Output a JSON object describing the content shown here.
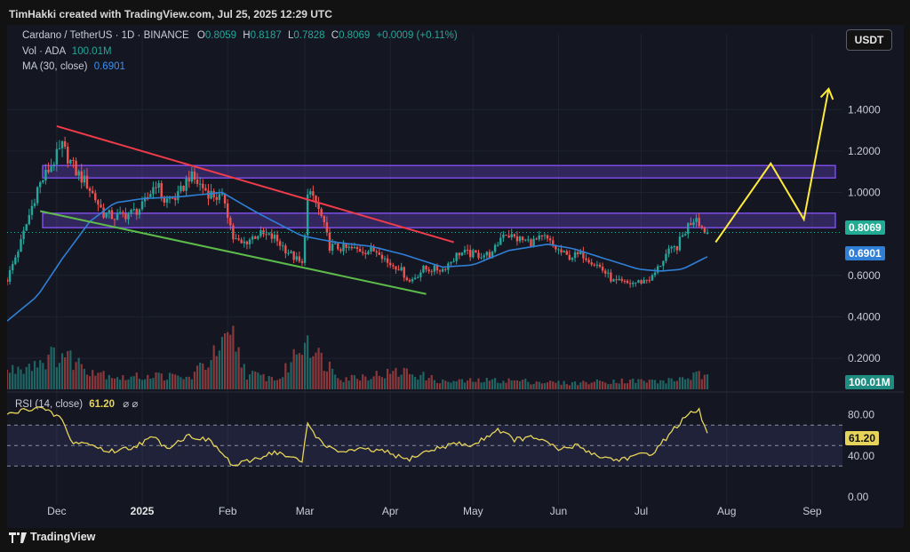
{
  "header": {
    "credit": "TimHakki created with TradingView.com, Jul 25, 2025 12:29 UTC"
  },
  "legend": {
    "symbol": "Cardano / TetherUS · 1D · BINANCE",
    "o_label": "O",
    "o": "0.8059",
    "h_label": "H",
    "h": "0.8187",
    "l_label": "L",
    "l": "0.7828",
    "c_label": "C",
    "c": "0.8069",
    "change": "+0.0009 (+0.11%)",
    "vol_label": "Vol · ADA",
    "vol": "100.01M",
    "ma_label": "MA (30, close)",
    "ma": "0.6901",
    "rsi_label": "RSI (14, close)",
    "rsi": "61.20",
    "rsi_icons": "⌀  ⌀"
  },
  "currency_button": "USDT",
  "tags": {
    "price": "0.8069",
    "ma": "0.6901",
    "volume": "100.01M",
    "rsi": "61.20"
  },
  "colors": {
    "up": "#26a69a",
    "down": "#ef5350",
    "ma": "#2f7fd6",
    "rsi": "#e6d35a",
    "zone": "#7b4ce6",
    "downtrend": "#ef3b4a",
    "support": "#5dbb4a",
    "projection": "#ffeb3b"
  },
  "footer": {
    "brand": "TradingView"
  },
  "chart_data": {
    "type": "candlestick",
    "symbol": "Cardano / TetherUS",
    "interval": "1D",
    "price_axis": {
      "ticks": [
        "1.4000",
        "1.2000",
        "1.0000",
        "0.6000",
        "0.4000",
        "0.2000"
      ],
      "ticks_values": [
        1.4,
        1.2,
        1.0,
        0.6,
        0.4,
        0.2
      ],
      "range": [
        0.05,
        1.68
      ]
    },
    "rsi_axis": {
      "ticks": [
        "80.00",
        "40.00",
        "0.00"
      ],
      "ticks_values": [
        80,
        40,
        0
      ],
      "range": [
        -8,
        98
      ],
      "bands": [
        70,
        50,
        30
      ]
    },
    "x_axis": {
      "labels": [
        "Dec",
        "2025",
        "Feb",
        "Mar",
        "Apr",
        "May",
        "Jun",
        "Jul",
        "Aug",
        "Sep"
      ],
      "dates": [
        "2024-12-01",
        "2025-01-01",
        "2025-02-01",
        "2025-03-01",
        "2025-04-01",
        "2025-05-01",
        "2025-06-01",
        "2025-07-01",
        "2025-08-01",
        "2025-09-01"
      ]
    },
    "date_range": [
      "2024-11-13",
      "2025-09-12"
    ],
    "price_path": [
      [
        "2024-11-13",
        0.58
      ],
      [
        "2024-11-18",
        0.76
      ],
      [
        "2024-11-24",
        1.02
      ],
      [
        "2024-12-03",
        1.22
      ],
      [
        "2024-12-08",
        1.1
      ],
      [
        "2024-12-12",
        1.04
      ],
      [
        "2024-12-18",
        0.9
      ],
      [
        "2024-12-22",
        0.88
      ],
      [
        "2024-12-28",
        0.9
      ],
      [
        "2025-01-01",
        0.93
      ],
      [
        "2025-01-06",
        1.05
      ],
      [
        "2025-01-09",
        0.96
      ],
      [
        "2025-01-14",
        0.98
      ],
      [
        "2025-01-18",
        1.08
      ],
      [
        "2025-01-20",
        1.06
      ],
      [
        "2025-01-25",
        1.0
      ],
      [
        "2025-01-31",
        0.96
      ],
      [
        "2025-02-03",
        0.78
      ],
      [
        "2025-02-06",
        0.75
      ],
      [
        "2025-02-12",
        0.8
      ],
      [
        "2025-02-18",
        0.78
      ],
      [
        "2025-02-24",
        0.7
      ],
      [
        "2025-02-28",
        0.65
      ],
      [
        "2025-03-02",
        0.98
      ],
      [
        "2025-03-04",
        0.98
      ],
      [
        "2025-03-07",
        0.88
      ],
      [
        "2025-03-10",
        0.74
      ],
      [
        "2025-03-15",
        0.73
      ],
      [
        "2025-03-23",
        0.72
      ],
      [
        "2025-03-28",
        0.72
      ],
      [
        "2025-03-31",
        0.66
      ],
      [
        "2025-04-04",
        0.64
      ],
      [
        "2025-04-08",
        0.57
      ],
      [
        "2025-04-13",
        0.63
      ],
      [
        "2025-04-20",
        0.63
      ],
      [
        "2025-04-26",
        0.71
      ],
      [
        "2025-05-02",
        0.7
      ],
      [
        "2025-05-08",
        0.7
      ],
      [
        "2025-05-12",
        0.81
      ],
      [
        "2025-05-16",
        0.78
      ],
      [
        "2025-05-22",
        0.76
      ],
      [
        "2025-05-27",
        0.78
      ],
      [
        "2025-05-31",
        0.73
      ],
      [
        "2025-06-04",
        0.69
      ],
      [
        "2025-06-10",
        0.7
      ],
      [
        "2025-06-16",
        0.64
      ],
      [
        "2025-06-21",
        0.57
      ],
      [
        "2025-06-26",
        0.56
      ],
      [
        "2025-07-01",
        0.57
      ],
      [
        "2025-07-05",
        0.59
      ],
      [
        "2025-07-10",
        0.7
      ],
      [
        "2025-07-14",
        0.74
      ],
      [
        "2025-07-18",
        0.84
      ],
      [
        "2025-07-21",
        0.89
      ],
      [
        "2025-07-23",
        0.83
      ],
      [
        "2025-07-25",
        0.807
      ]
    ],
    "ma30_path": [
      [
        "2024-11-13",
        0.38
      ],
      [
        "2024-11-24",
        0.5
      ],
      [
        "2024-12-03",
        0.68
      ],
      [
        "2024-12-13",
        0.86
      ],
      [
        "2024-12-22",
        0.95
      ],
      [
        "2025-01-01",
        0.97
      ],
      [
        "2025-01-15",
        0.98
      ],
      [
        "2025-01-30",
        1.0
      ],
      [
        "2025-02-12",
        0.9
      ],
      [
        "2025-02-28",
        0.79
      ],
      [
        "2025-03-12",
        0.76
      ],
      [
        "2025-03-25",
        0.74
      ],
      [
        "2025-04-06",
        0.7
      ],
      [
        "2025-04-20",
        0.64
      ],
      [
        "2025-05-01",
        0.65
      ],
      [
        "2025-05-14",
        0.72
      ],
      [
        "2025-05-28",
        0.75
      ],
      [
        "2025-06-06",
        0.73
      ],
      [
        "2025-06-18",
        0.68
      ],
      [
        "2025-06-30",
        0.63
      ],
      [
        "2025-07-08",
        0.62
      ],
      [
        "2025-07-16",
        0.63
      ],
      [
        "2025-07-25",
        0.69
      ]
    ],
    "volume_relative_path": [
      [
        "2024-11-13",
        0.35
      ],
      [
        "2024-11-24",
        0.55
      ],
      [
        "2024-12-03",
        0.7
      ],
      [
        "2024-12-13",
        0.4
      ],
      [
        "2024-12-25",
        0.22
      ],
      [
        "2025-01-05",
        0.28
      ],
      [
        "2025-01-18",
        0.22
      ],
      [
        "2025-02-03",
        1.0
      ],
      [
        "2025-02-08",
        0.3
      ],
      [
        "2025-02-20",
        0.2
      ],
      [
        "2025-03-02",
        1.1
      ],
      [
        "2025-03-05",
        0.7
      ],
      [
        "2025-03-15",
        0.22
      ],
      [
        "2025-04-07",
        0.35
      ],
      [
        "2025-04-20",
        0.15
      ],
      [
        "2025-05-12",
        0.18
      ],
      [
        "2025-06-05",
        0.12
      ],
      [
        "2025-06-22",
        0.17
      ],
      [
        "2025-07-10",
        0.16
      ],
      [
        "2025-07-22",
        0.28
      ],
      [
        "2025-07-25",
        0.22
      ]
    ],
    "rsi_path": [
      [
        "2024-11-13",
        80
      ],
      [
        "2024-11-24",
        88
      ],
      [
        "2024-12-03",
        76
      ],
      [
        "2024-12-06",
        54
      ],
      [
        "2024-12-12",
        52
      ],
      [
        "2024-12-20",
        44
      ],
      [
        "2024-12-28",
        48
      ],
      [
        "2025-01-05",
        58
      ],
      [
        "2025-01-10",
        48
      ],
      [
        "2025-01-18",
        60
      ],
      [
        "2025-01-26",
        54
      ],
      [
        "2025-02-03",
        30
      ],
      [
        "2025-02-08",
        34
      ],
      [
        "2025-02-18",
        44
      ],
      [
        "2025-02-28",
        34
      ],
      [
        "2025-03-02",
        72
      ],
      [
        "2025-03-06",
        56
      ],
      [
        "2025-03-12",
        44
      ],
      [
        "2025-03-22",
        46
      ],
      [
        "2025-03-30",
        44
      ],
      [
        "2025-04-07",
        36
      ],
      [
        "2025-04-14",
        44
      ],
      [
        "2025-04-24",
        52
      ],
      [
        "2025-05-01",
        50
      ],
      [
        "2025-05-10",
        66
      ],
      [
        "2025-05-16",
        56
      ],
      [
        "2025-05-24",
        58
      ],
      [
        "2025-06-01",
        46
      ],
      [
        "2025-06-08",
        50
      ],
      [
        "2025-06-15",
        40
      ],
      [
        "2025-06-22",
        36
      ],
      [
        "2025-06-30",
        40
      ],
      [
        "2025-07-06",
        44
      ],
      [
        "2025-07-12",
        64
      ],
      [
        "2025-07-18",
        80
      ],
      [
        "2025-07-22",
        84
      ],
      [
        "2025-07-25",
        61.2
      ]
    ],
    "resistance_zones": [
      {
        "from": 1.07,
        "to": 1.13
      },
      {
        "from": 0.83,
        "to": 0.9
      }
    ],
    "last_price": 0.8069,
    "last_ma": 0.6901,
    "rsi_last": 61.2,
    "drawings": [
      {
        "type": "trendline",
        "color": "red",
        "from": [
          "2024-12-01",
          1.32
        ],
        "to": [
          "2025-04-24",
          0.76
        ]
      },
      {
        "type": "trendline",
        "color": "green",
        "from": [
          "2024-11-25",
          0.91
        ],
        "to": [
          "2025-04-14",
          0.51
        ]
      },
      {
        "type": "projection",
        "color": "yellow",
        "points": [
          [
            "2025-07-28",
            0.76
          ],
          [
            "2025-08-17",
            1.14
          ],
          [
            "2025-08-29",
            0.87
          ],
          [
            "2025-09-07",
            1.5
          ]
        ]
      }
    ]
  }
}
